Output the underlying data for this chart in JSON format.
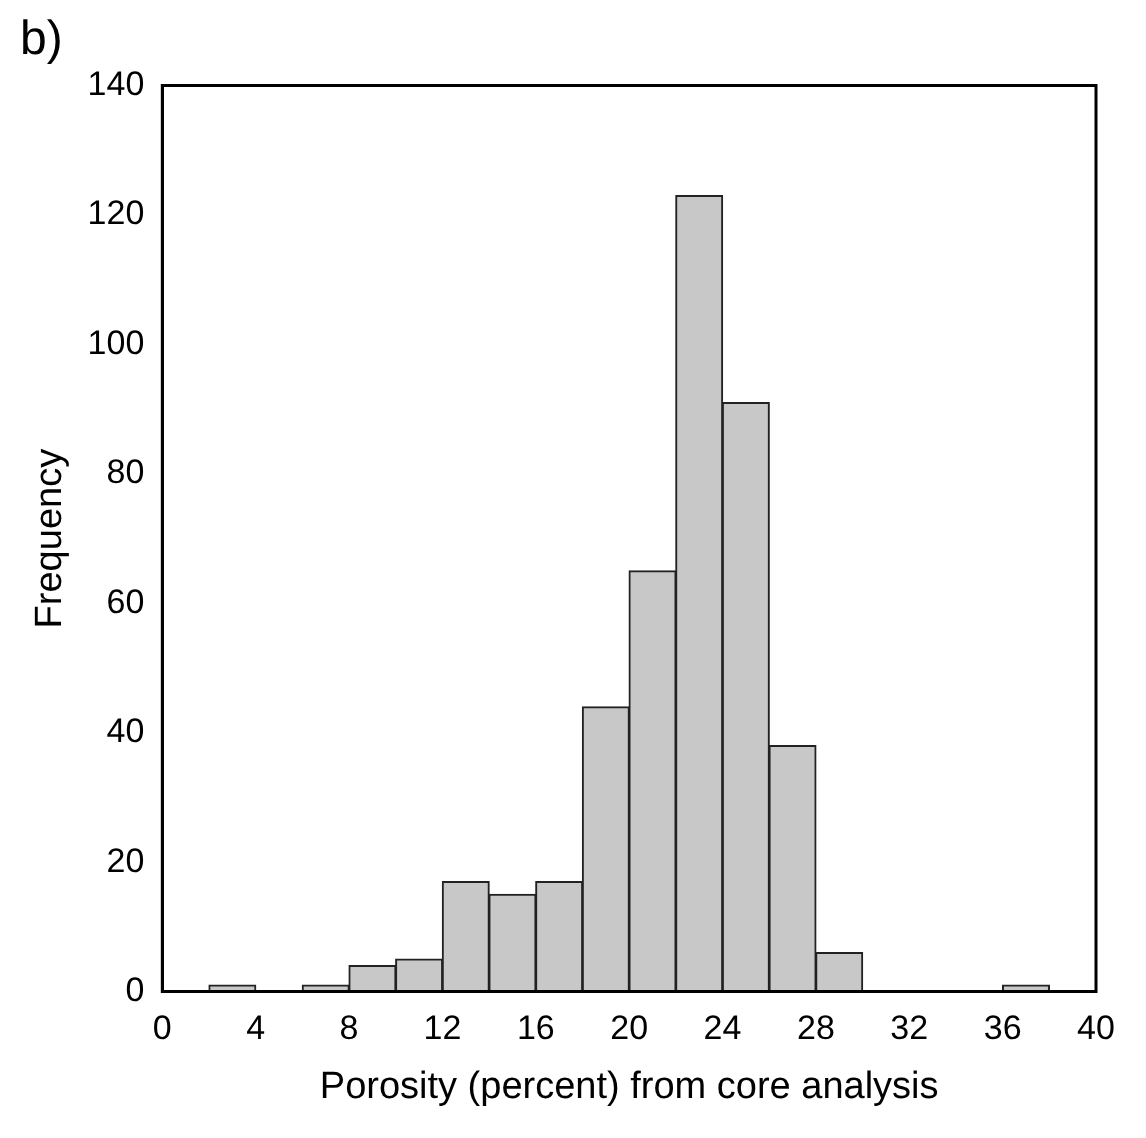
{
  "chart_data": {
    "type": "histogram",
    "title": "b)",
    "xlabel": "Porosity (percent) from core analysis",
    "ylabel": "Frequency",
    "bins": [
      0,
      2,
      4,
      6,
      8,
      10,
      12,
      14,
      16,
      18,
      20,
      22,
      24,
      26,
      28,
      30,
      32,
      34,
      36,
      38,
      40
    ],
    "values": [
      0,
      1,
      0,
      1,
      4,
      5,
      17,
      15,
      17,
      44,
      65,
      123,
      91,
      38,
      6,
      0,
      0,
      0,
      1,
      0
    ],
    "color": "#c8c8c8",
    "xlim": [
      0,
      40
    ],
    "xticks": [
      0,
      4,
      8,
      12,
      16,
      20,
      24,
      28,
      32,
      36,
      40
    ],
    "ylim": [
      0,
      140
    ],
    "yticks": [
      0,
      20,
      40,
      60,
      80,
      100,
      120,
      140
    ],
    "grid": false
  }
}
